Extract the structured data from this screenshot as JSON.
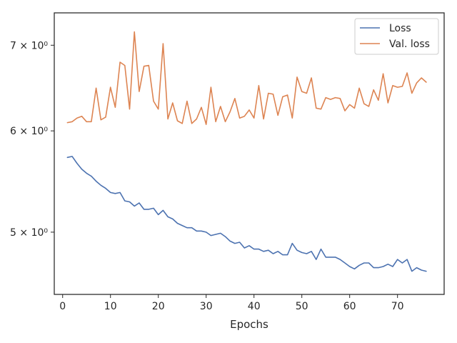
{
  "chart_data": {
    "type": "line",
    "title": "",
    "xlabel": "Epochs",
    "ylabel": "",
    "xlim": [
      -1.75,
      79.75
    ],
    "ylim": [
      4.47,
      7.42
    ],
    "yscale": "log",
    "x_ticks": [
      {
        "value": 0,
        "label": "0"
      },
      {
        "value": 10,
        "label": "10"
      },
      {
        "value": 20,
        "label": "20"
      },
      {
        "value": 30,
        "label": "30"
      },
      {
        "value": 40,
        "label": "40"
      },
      {
        "value": 50,
        "label": "50"
      },
      {
        "value": 60,
        "label": "60"
      },
      {
        "value": 70,
        "label": "70"
      }
    ],
    "y_ticks": [
      {
        "value": 5,
        "label": "5 × 10⁰"
      },
      {
        "value": 6,
        "label": "6 × 10⁰"
      },
      {
        "value": 7,
        "label": "7 × 10⁰"
      }
    ],
    "grid": false,
    "legend_position": "top-right",
    "x": [
      1,
      2,
      3,
      4,
      5,
      6,
      7,
      8,
      9,
      10,
      11,
      12,
      13,
      14,
      15,
      16,
      17,
      18,
      19,
      20,
      21,
      22,
      23,
      24,
      25,
      26,
      27,
      28,
      29,
      30,
      31,
      32,
      33,
      34,
      35,
      36,
      37,
      38,
      39,
      40,
      41,
      42,
      43,
      44,
      45,
      46,
      47,
      48,
      49,
      50,
      51,
      52,
      53,
      54,
      55,
      56,
      57,
      58,
      59,
      60,
      61,
      62,
      63,
      64,
      65,
      66,
      67,
      68,
      69,
      70,
      71,
      72,
      73,
      74,
      75,
      76
    ],
    "series": [
      {
        "name": "Loss",
        "color": "#4c72b0",
        "values": [
          5.72,
          5.73,
          5.66,
          5.6,
          5.56,
          5.53,
          5.48,
          5.44,
          5.41,
          5.37,
          5.36,
          5.37,
          5.29,
          5.28,
          5.24,
          5.27,
          5.21,
          5.21,
          5.22,
          5.16,
          5.2,
          5.14,
          5.12,
          5.08,
          5.06,
          5.04,
          5.04,
          5.01,
          5.01,
          5.0,
          4.97,
          4.98,
          4.99,
          4.96,
          4.92,
          4.9,
          4.91,
          4.86,
          4.88,
          4.85,
          4.85,
          4.83,
          4.84,
          4.81,
          4.83,
          4.8,
          4.8,
          4.9,
          4.84,
          4.82,
          4.81,
          4.83,
          4.76,
          4.85,
          4.78,
          4.78,
          4.78,
          4.76,
          4.73,
          4.7,
          4.68,
          4.71,
          4.73,
          4.73,
          4.69,
          4.69,
          4.7,
          4.72,
          4.7,
          4.76,
          4.73,
          4.76,
          4.66,
          4.69,
          4.67,
          4.66
        ]
      },
      {
        "name": "Val. loss",
        "color": "#dd8452",
        "values": [
          6.09,
          6.1,
          6.14,
          6.16,
          6.1,
          6.1,
          6.48,
          6.12,
          6.15,
          6.49,
          6.26,
          6.79,
          6.75,
          6.24,
          7.17,
          6.44,
          6.74,
          6.75,
          6.33,
          6.24,
          7.02,
          6.13,
          6.31,
          6.11,
          6.08,
          6.33,
          6.08,
          6.13,
          6.26,
          6.07,
          6.49,
          6.1,
          6.27,
          6.1,
          6.21,
          6.36,
          6.14,
          6.16,
          6.23,
          6.14,
          6.51,
          6.13,
          6.42,
          6.41,
          6.17,
          6.38,
          6.4,
          6.14,
          6.61,
          6.44,
          6.42,
          6.6,
          6.25,
          6.24,
          6.37,
          6.35,
          6.37,
          6.36,
          6.22,
          6.29,
          6.25,
          6.48,
          6.3,
          6.27,
          6.46,
          6.34,
          6.65,
          6.31,
          6.51,
          6.49,
          6.5,
          6.66,
          6.42,
          6.54,
          6.6,
          6.55
        ]
      }
    ]
  }
}
